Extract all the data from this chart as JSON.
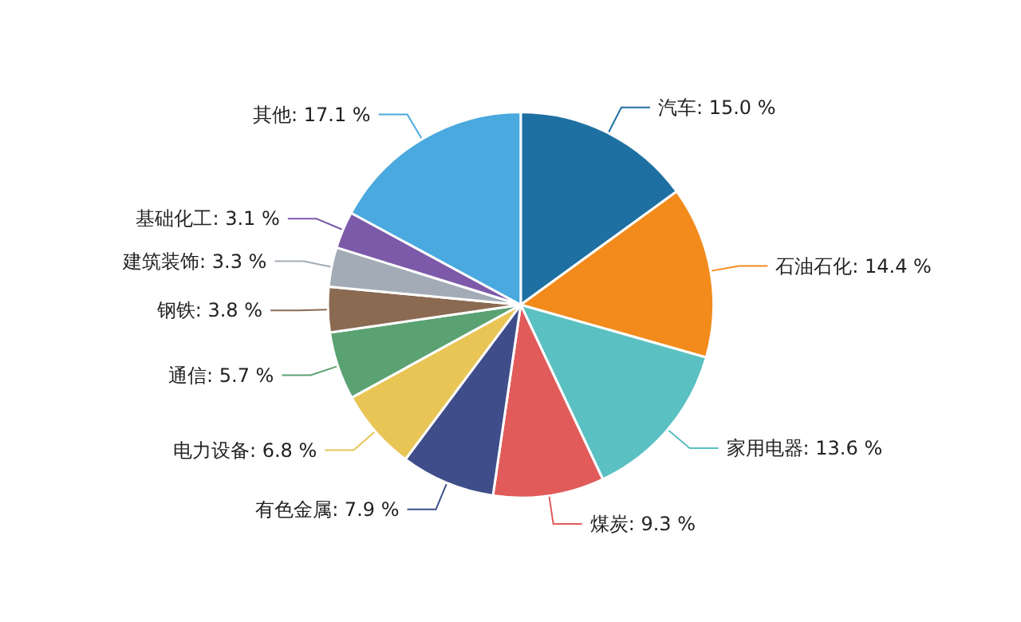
{
  "chart_data": {
    "type": "pie",
    "categories": [
      "汽车",
      "石油石化",
      "家用电器",
      "煤炭",
      "有色金属",
      "电力设备",
      "通信",
      "钢铁",
      "建筑装饰",
      "基础化工",
      "其他"
    ],
    "values": [
      15.0,
      14.4,
      13.6,
      9.3,
      7.9,
      6.8,
      5.7,
      3.8,
      3.3,
      3.1,
      17.1
    ],
    "value_labels": [
      "15.0 %",
      "14.4 %",
      "13.6 %",
      "9.3 %",
      "7.9 %",
      "6.8 %",
      "5.7 %",
      "3.8 %",
      "3.3 %",
      "3.1 %",
      "17.1 %"
    ],
    "colors": [
      "#1f70a2",
      "#f28b1c",
      "#5bc0c1",
      "#e15b5b",
      "#3f4e8a",
      "#e8c555",
      "#5ba272",
      "#8b6a52",
      "#a2abb6",
      "#7d5aa9",
      "#4aa9de"
    ],
    "legend": false
  }
}
